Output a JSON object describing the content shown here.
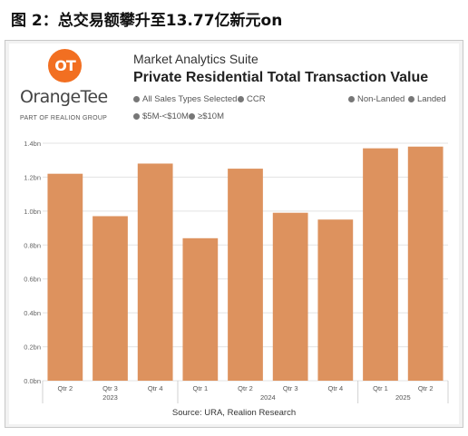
{
  "caption": "图 2：总交易额攀升至13.77亿新元on",
  "logo": {
    "mark": "OT",
    "wordmark": "OrangeTee",
    "tagline": "PART OF REALION GROUP",
    "color": "#f26f21"
  },
  "header": {
    "suite": "Market Analytics Suite",
    "title": "Private Residential Total Transaction Value"
  },
  "legend": {
    "all_sales": "All Sales Types Selected",
    "ccr": "CCR",
    "non_landed": "Non-Landed",
    "landed": "Landed",
    "mid": "$5M-<$10M",
    "high": "≥$10M"
  },
  "source": "Source: URA, Realion Research",
  "chart_data": {
    "type": "bar",
    "categories": [
      "Qtr 2",
      "Qtr 3",
      "Qtr 4",
      "Qtr 1",
      "Qtr 2",
      "Qtr 3",
      "Qtr 4",
      "Qtr 1",
      "Qtr 2"
    ],
    "years": [
      {
        "label": "2023",
        "span": 3
      },
      {
        "label": "2024",
        "span": 4
      },
      {
        "label": "2025",
        "span": 2
      }
    ],
    "values": [
      1.22,
      0.97,
      1.28,
      0.84,
      1.25,
      0.99,
      0.95,
      1.37,
      1.38
    ],
    "yticks": [
      "0.0bn",
      "0.2bn",
      "0.4bn",
      "0.6bn",
      "0.8bn",
      "1.0bn",
      "1.2bn",
      "1.4bn"
    ],
    "ylim": [
      0,
      1.4
    ],
    "bar_color": "#dd925e",
    "grid": true
  }
}
